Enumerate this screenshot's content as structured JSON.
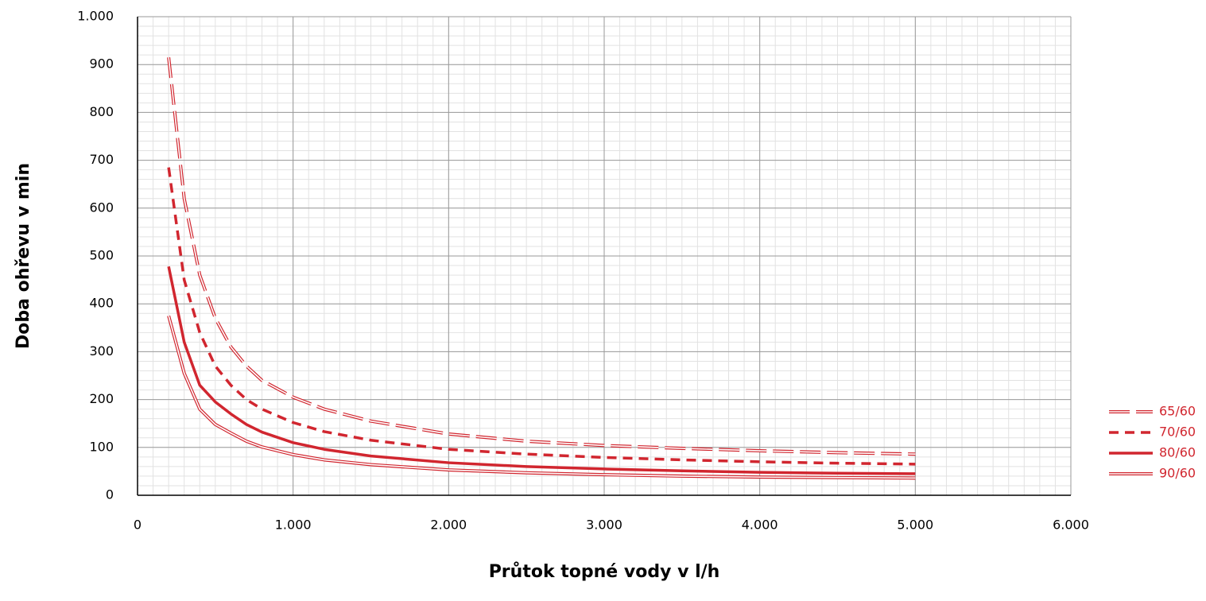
{
  "chart_data": {
    "type": "line",
    "xlabel": "Průtok topné vody v l/h",
    "ylabel": "Doba ohřevu v min",
    "x": [
      200,
      300,
      400,
      500,
      600,
      700,
      800,
      1000,
      1200,
      1500,
      2000,
      2500,
      3000,
      3500,
      4000,
      4500,
      5000
    ],
    "series": [
      {
        "name": "65/60",
        "color": "#d1262f",
        "line_style": "hollow-dash",
        "values": [
          915,
          620,
          460,
          370,
          310,
          270,
          240,
          205,
          180,
          155,
          128,
          113,
          104,
          98,
          93,
          89,
          86
        ]
      },
      {
        "name": "70/60",
        "color": "#d1262f",
        "line_style": "dash",
        "values": [
          685,
          450,
          340,
          270,
          230,
          200,
          180,
          152,
          133,
          115,
          96,
          86,
          79,
          74,
          70,
          67,
          65
        ]
      },
      {
        "name": "80/60",
        "color": "#d1262f",
        "line_style": "solid",
        "values": [
          478,
          320,
          230,
          195,
          170,
          148,
          132,
          110,
          96,
          82,
          68,
          60,
          55,
          51,
          48,
          46,
          45
        ]
      },
      {
        "name": "90/60",
        "color": "#d1262f",
        "line_style": "double",
        "values": [
          375,
          255,
          180,
          148,
          130,
          113,
          101,
          85,
          74,
          64,
          53,
          47,
          43,
          40,
          38,
          37,
          36
        ]
      }
    ],
    "xlim": [
      0,
      6000
    ],
    "xticks": [
      0,
      {
        "value": 1000,
        "label": "1.000"
      },
      {
        "value": 2000,
        "label": "2.000"
      },
      {
        "value": 3000,
        "label": "3.000"
      },
      {
        "value": 4000,
        "label": "4.000"
      },
      {
        "value": 5000,
        "label": "5.000"
      },
      {
        "value": 6000,
        "label": "6.000"
      }
    ],
    "ylim": [
      0,
      1000
    ],
    "yticks": [
      0,
      100,
      200,
      300,
      400,
      500,
      600,
      700,
      800,
      900,
      {
        "value": 1000,
        "label": "1.000"
      }
    ],
    "grid": true,
    "minor_grid": {
      "x": 100,
      "y": 20
    },
    "legend": "right"
  }
}
